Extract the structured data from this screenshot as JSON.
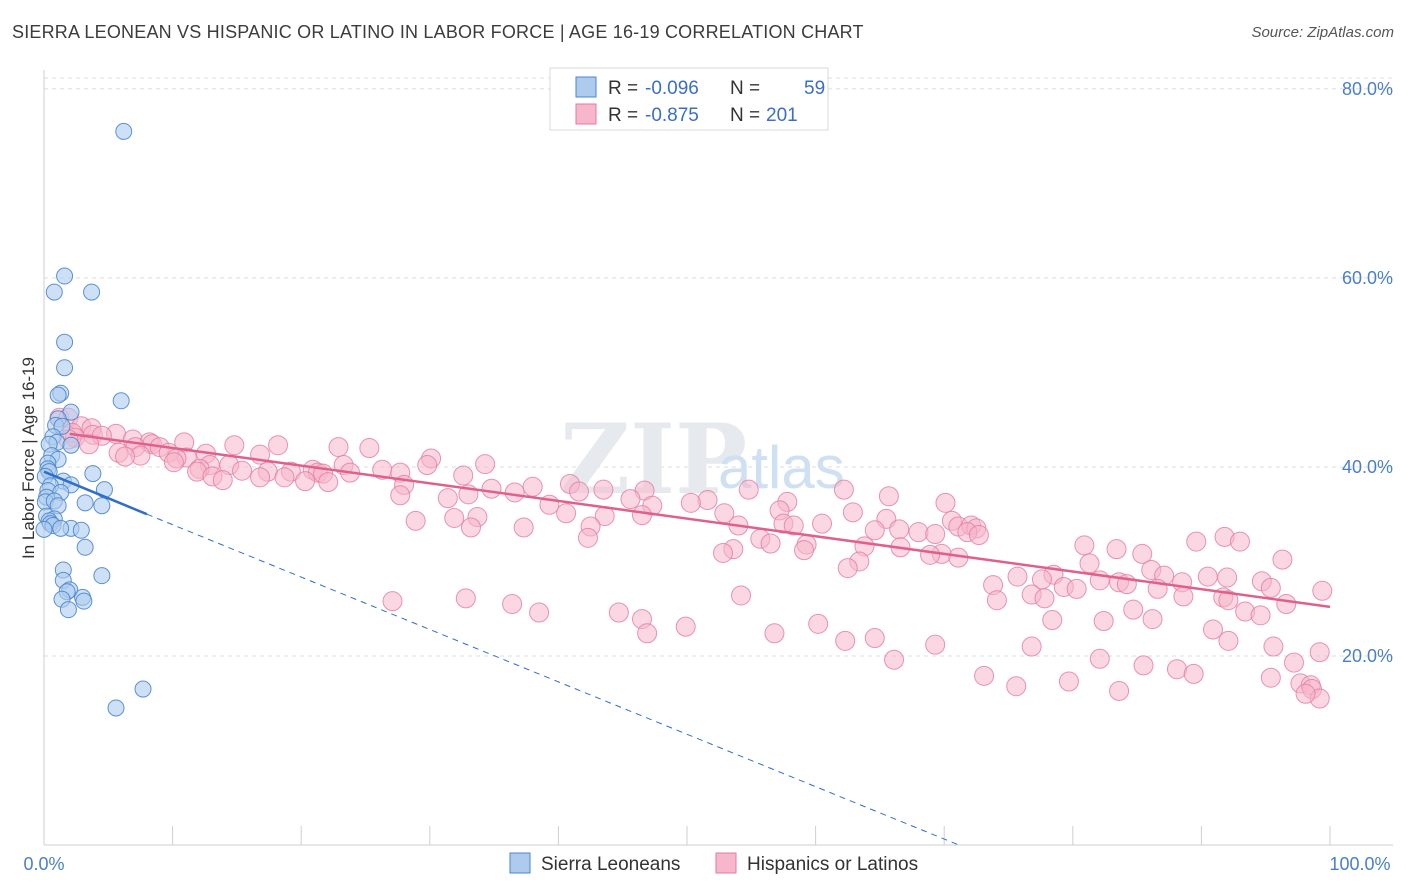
{
  "title": "SIERRA LEONEAN VS HISPANIC OR LATINO IN LABOR FORCE | AGE 16-19 CORRELATION CHART",
  "source": "Source: ZipAtlas.com",
  "watermark": {
    "zip": "ZIP",
    "atlas": "atlas"
  },
  "legend": {
    "rows": [
      {
        "r_label": "R =",
        "r_value": "-0.096",
        "n_label": "N =",
        "n_value": "59"
      },
      {
        "r_label": "R =",
        "r_value": "-0.875",
        "n_label": "N =",
        "n_value": "201"
      }
    ]
  },
  "colors": {
    "blue_fill": "#aecbee",
    "blue_stroke": "#4a86d0",
    "blue_line": "#2f6fc8",
    "pink_fill": "#f6b6cb",
    "pink_stroke": "#e57aa0",
    "pink_line": "#e0608d",
    "grid": "#dcdcdc",
    "axis_text": "#4a7fc8"
  },
  "chart_data": {
    "type": "scatter",
    "title": "SIERRA LEONEAN VS HISPANIC OR LATINO IN LABOR FORCE | AGE 16-19 CORRELATION CHART",
    "ylabel": "In Labor Force | Age 16-19",
    "xlabel": "",
    "xlim": [
      0,
      100
    ],
    "ylim": [
      0,
      82
    ],
    "y_ticks": [
      20,
      40,
      60,
      80
    ],
    "y_tick_labels": [
      "20.0%",
      "40.0%",
      "60.0%",
      "80.0%"
    ],
    "x_tick_labels": [
      "0.0%",
      "100.0%"
    ],
    "series": [
      {
        "name": "Sierra Leoneans",
        "color": "#aecbee",
        "r": -0.096,
        "n": 59,
        "trend": {
          "x0": 0,
          "y0": 39.5,
          "x1": 8,
          "y1": 35.0,
          "dashed_to_x": 100,
          "dashed_to_y": -16
        },
        "points": [
          [
            6.2,
            75.5
          ],
          [
            1.6,
            60.2
          ],
          [
            0.8,
            58.5
          ],
          [
            3.7,
            58.5
          ],
          [
            1.6,
            53.2
          ],
          [
            1.6,
            50.5
          ],
          [
            1.3,
            47.8
          ],
          [
            1.1,
            47.6
          ],
          [
            6.0,
            47.0
          ],
          [
            2.1,
            45.8
          ],
          [
            1.1,
            45.1
          ],
          [
            0.9,
            44.4
          ],
          [
            1.4,
            44.3
          ],
          [
            0.7,
            43.2
          ],
          [
            1.0,
            42.6
          ],
          [
            0.4,
            42.4
          ],
          [
            2.1,
            42.3
          ],
          [
            0.6,
            41.2
          ],
          [
            1.1,
            40.8
          ],
          [
            0.3,
            40.4
          ],
          [
            0.3,
            39.8
          ],
          [
            0.4,
            39.5
          ],
          [
            0.1,
            39.0
          ],
          [
            3.8,
            39.3
          ],
          [
            1.5,
            38.5
          ],
          [
            0.5,
            38.0
          ],
          [
            2.1,
            38.1
          ],
          [
            0.3,
            37.5
          ],
          [
            1.3,
            37.3
          ],
          [
            4.7,
            37.6
          ],
          [
            0.2,
            36.8
          ],
          [
            0.1,
            36.3
          ],
          [
            0.8,
            36.4
          ],
          [
            3.2,
            36.2
          ],
          [
            1.1,
            35.9
          ],
          [
            4.5,
            35.9
          ],
          [
            0.2,
            34.8
          ],
          [
            0.8,
            34.5
          ],
          [
            0.4,
            34.3
          ],
          [
            0.5,
            34.0
          ],
          [
            0.7,
            33.8
          ],
          [
            2.1,
            33.5
          ],
          [
            1.3,
            33.5
          ],
          [
            0.0,
            33.4
          ],
          [
            2.9,
            33.3
          ],
          [
            3.2,
            31.5
          ],
          [
            1.5,
            29.1
          ],
          [
            4.5,
            28.5
          ],
          [
            1.5,
            28.0
          ],
          [
            2.0,
            27.0
          ],
          [
            1.8,
            26.8
          ],
          [
            3.0,
            26.2
          ],
          [
            3.1,
            25.8
          ],
          [
            1.4,
            26.0
          ],
          [
            1.9,
            24.9
          ],
          [
            7.7,
            16.5
          ],
          [
            5.6,
            14.5
          ]
        ]
      },
      {
        "name": "Hispanics or Latinos",
        "color": "#f6b6cb",
        "r": -0.875,
        "n": 201,
        "trend": {
          "x0": 2,
          "y0": 43.5,
          "x1": 100,
          "y1": 25.2
        },
        "points": [
          [
            1.2,
            45.2
          ],
          [
            1.9,
            45.2
          ],
          [
            2.9,
            44.3
          ],
          [
            3.7,
            44.1
          ],
          [
            2.2,
            43.6
          ],
          [
            5.6,
            43.5
          ],
          [
            3.8,
            43.4
          ],
          [
            4.5,
            43.3
          ],
          [
            2.4,
            43.1
          ],
          [
            1.9,
            42.9
          ],
          [
            6.9,
            42.9
          ],
          [
            10.9,
            42.6
          ],
          [
            8.2,
            42.6
          ],
          [
            8.4,
            42.4
          ],
          [
            3.5,
            42.4
          ],
          [
            14.8,
            42.3
          ],
          [
            18.2,
            42.3
          ],
          [
            7.1,
            42.1
          ],
          [
            9.0,
            42.1
          ],
          [
            22.9,
            42.1
          ],
          [
            25.3,
            42.0
          ],
          [
            5.8,
            41.5
          ],
          [
            12.6,
            41.4
          ],
          [
            9.7,
            41.5
          ],
          [
            16.8,
            41.3
          ],
          [
            7.5,
            41.2
          ],
          [
            6.3,
            41.1
          ],
          [
            11.1,
            41.0
          ],
          [
            10.3,
            40.9
          ],
          [
            30.1,
            40.9
          ],
          [
            10.1,
            40.5
          ],
          [
            12.9,
            40.2
          ],
          [
            14.4,
            40.2
          ],
          [
            23.3,
            40.2
          ],
          [
            29.8,
            40.2
          ],
          [
            34.3,
            40.3
          ],
          [
            12.1,
            39.8
          ],
          [
            20.9,
            39.7
          ],
          [
            15.4,
            39.6
          ],
          [
            26.3,
            39.7
          ],
          [
            11.9,
            39.5
          ],
          [
            17.4,
            39.5
          ],
          [
            19.2,
            39.5
          ],
          [
            23.8,
            39.4
          ],
          [
            27.7,
            39.4
          ],
          [
            21.3,
            39.4
          ],
          [
            21.7,
            39.3
          ],
          [
            13.1,
            39.0
          ],
          [
            16.8,
            38.9
          ],
          [
            18.7,
            38.9
          ],
          [
            32.6,
            39.1
          ],
          [
            13.9,
            38.6
          ],
          [
            20.3,
            38.5
          ],
          [
            22.1,
            38.4
          ],
          [
            40.9,
            38.2
          ],
          [
            28.0,
            38.1
          ],
          [
            38.0,
            37.9
          ],
          [
            34.8,
            37.7
          ],
          [
            43.5,
            37.6
          ],
          [
            54.8,
            37.6
          ],
          [
            41.6,
            37.4
          ],
          [
            46.7,
            37.5
          ],
          [
            62.2,
            37.6
          ],
          [
            36.6,
            37.3
          ],
          [
            33.0,
            37.1
          ],
          [
            27.7,
            37.0
          ],
          [
            65.7,
            36.9
          ],
          [
            31.4,
            36.7
          ],
          [
            45.6,
            36.6
          ],
          [
            51.6,
            36.5
          ],
          [
            57.8,
            36.3
          ],
          [
            50.3,
            36.2
          ],
          [
            39.3,
            36.0
          ],
          [
            70.1,
            36.2
          ],
          [
            47.3,
            35.9
          ],
          [
            57.2,
            35.4
          ],
          [
            62.9,
            35.2
          ],
          [
            52.9,
            35.1
          ],
          [
            40.6,
            35.1
          ],
          [
            46.5,
            34.9
          ],
          [
            43.6,
            34.8
          ],
          [
            33.7,
            34.7
          ],
          [
            31.9,
            34.6
          ],
          [
            65.5,
            34.5
          ],
          [
            28.9,
            34.3
          ],
          [
            70.6,
            34.3
          ],
          [
            57.5,
            34.0
          ],
          [
            60.5,
            34.0
          ],
          [
            58.3,
            33.8
          ],
          [
            54.0,
            33.8
          ],
          [
            71.1,
            33.7
          ],
          [
            72.1,
            33.8
          ],
          [
            42.5,
            33.7
          ],
          [
            37.3,
            33.6
          ],
          [
            33.2,
            33.6
          ],
          [
            72.5,
            33.5
          ],
          [
            66.5,
            33.4
          ],
          [
            64.6,
            33.3
          ],
          [
            71.8,
            33.1
          ],
          [
            68.0,
            33.1
          ],
          [
            69.3,
            32.9
          ],
          [
            72.7,
            32.8
          ],
          [
            42.3,
            32.5
          ],
          [
            55.7,
            32.4
          ],
          [
            56.5,
            31.9
          ],
          [
            59.3,
            31.8
          ],
          [
            63.8,
            31.6
          ],
          [
            66.6,
            31.5
          ],
          [
            53.6,
            31.3
          ],
          [
            59.1,
            31.2
          ],
          [
            52.8,
            30.9
          ],
          [
            69.8,
            30.8
          ],
          [
            68.9,
            30.7
          ],
          [
            71.1,
            30.4
          ],
          [
            63.4,
            30.0
          ],
          [
            62.5,
            29.3
          ],
          [
            80.9,
            31.7
          ],
          [
            83.4,
            31.3
          ],
          [
            85.4,
            30.8
          ],
          [
            91.8,
            32.6
          ],
          [
            89.6,
            32.1
          ],
          [
            93.0,
            32.1
          ],
          [
            96.3,
            30.2
          ],
          [
            81.3,
            29.8
          ],
          [
            86.1,
            29.1
          ],
          [
            87.1,
            28.5
          ],
          [
            90.5,
            28.4
          ],
          [
            92.0,
            28.3
          ],
          [
            94.7,
            27.9
          ],
          [
            78.5,
            28.6
          ],
          [
            75.7,
            28.4
          ],
          [
            77.6,
            28.1
          ],
          [
            82.1,
            28.0
          ],
          [
            88.5,
            27.8
          ],
          [
            83.6,
            27.8
          ],
          [
            84.2,
            27.6
          ],
          [
            73.8,
            27.5
          ],
          [
            79.3,
            27.3
          ],
          [
            80.3,
            27.1
          ],
          [
            86.6,
            27.1
          ],
          [
            95.4,
            27.2
          ],
          [
            99.4,
            26.9
          ],
          [
            76.8,
            26.5
          ],
          [
            88.6,
            26.3
          ],
          [
            91.7,
            26.2
          ],
          [
            92.1,
            25.9
          ],
          [
            96.6,
            25.5
          ],
          [
            84.7,
            24.9
          ],
          [
            93.4,
            24.7
          ],
          [
            94.6,
            24.3
          ],
          [
            77.8,
            26.1
          ],
          [
            74.1,
            25.9
          ],
          [
            78.4,
            23.8
          ],
          [
            82.4,
            23.7
          ],
          [
            86.2,
            23.9
          ],
          [
            90.9,
            22.8
          ],
          [
            92.1,
            21.6
          ],
          [
            95.6,
            21.0
          ],
          [
            99.2,
            20.4
          ],
          [
            97.2,
            19.3
          ],
          [
            95.4,
            17.7
          ],
          [
            97.7,
            17.1
          ],
          [
            98.5,
            16.9
          ],
          [
            98.6,
            16.5
          ],
          [
            99.2,
            15.5
          ],
          [
            98.1,
            16.0
          ],
          [
            54.2,
            26.4
          ],
          [
            32.8,
            26.1
          ],
          [
            27.1,
            25.8
          ],
          [
            36.4,
            25.5
          ],
          [
            38.5,
            24.6
          ],
          [
            44.7,
            24.6
          ],
          [
            46.5,
            23.9
          ],
          [
            60.2,
            23.4
          ],
          [
            49.9,
            23.1
          ],
          [
            46.9,
            22.4
          ],
          [
            56.8,
            22.4
          ],
          [
            64.6,
            21.9
          ],
          [
            62.3,
            21.6
          ],
          [
            69.3,
            21.2
          ],
          [
            76.8,
            21.0
          ],
          [
            82.1,
            19.7
          ],
          [
            85.5,
            19.0
          ],
          [
            88.1,
            18.6
          ],
          [
            89.4,
            18.1
          ],
          [
            66.1,
            19.6
          ],
          [
            73.1,
            17.9
          ],
          [
            79.7,
            17.3
          ],
          [
            75.6,
            16.8
          ],
          [
            83.6,
            16.3
          ]
        ]
      }
    ]
  },
  "bottom_legend": [
    {
      "label": "Sierra Leoneans"
    },
    {
      "label": "Hispanics or Latinos"
    }
  ]
}
